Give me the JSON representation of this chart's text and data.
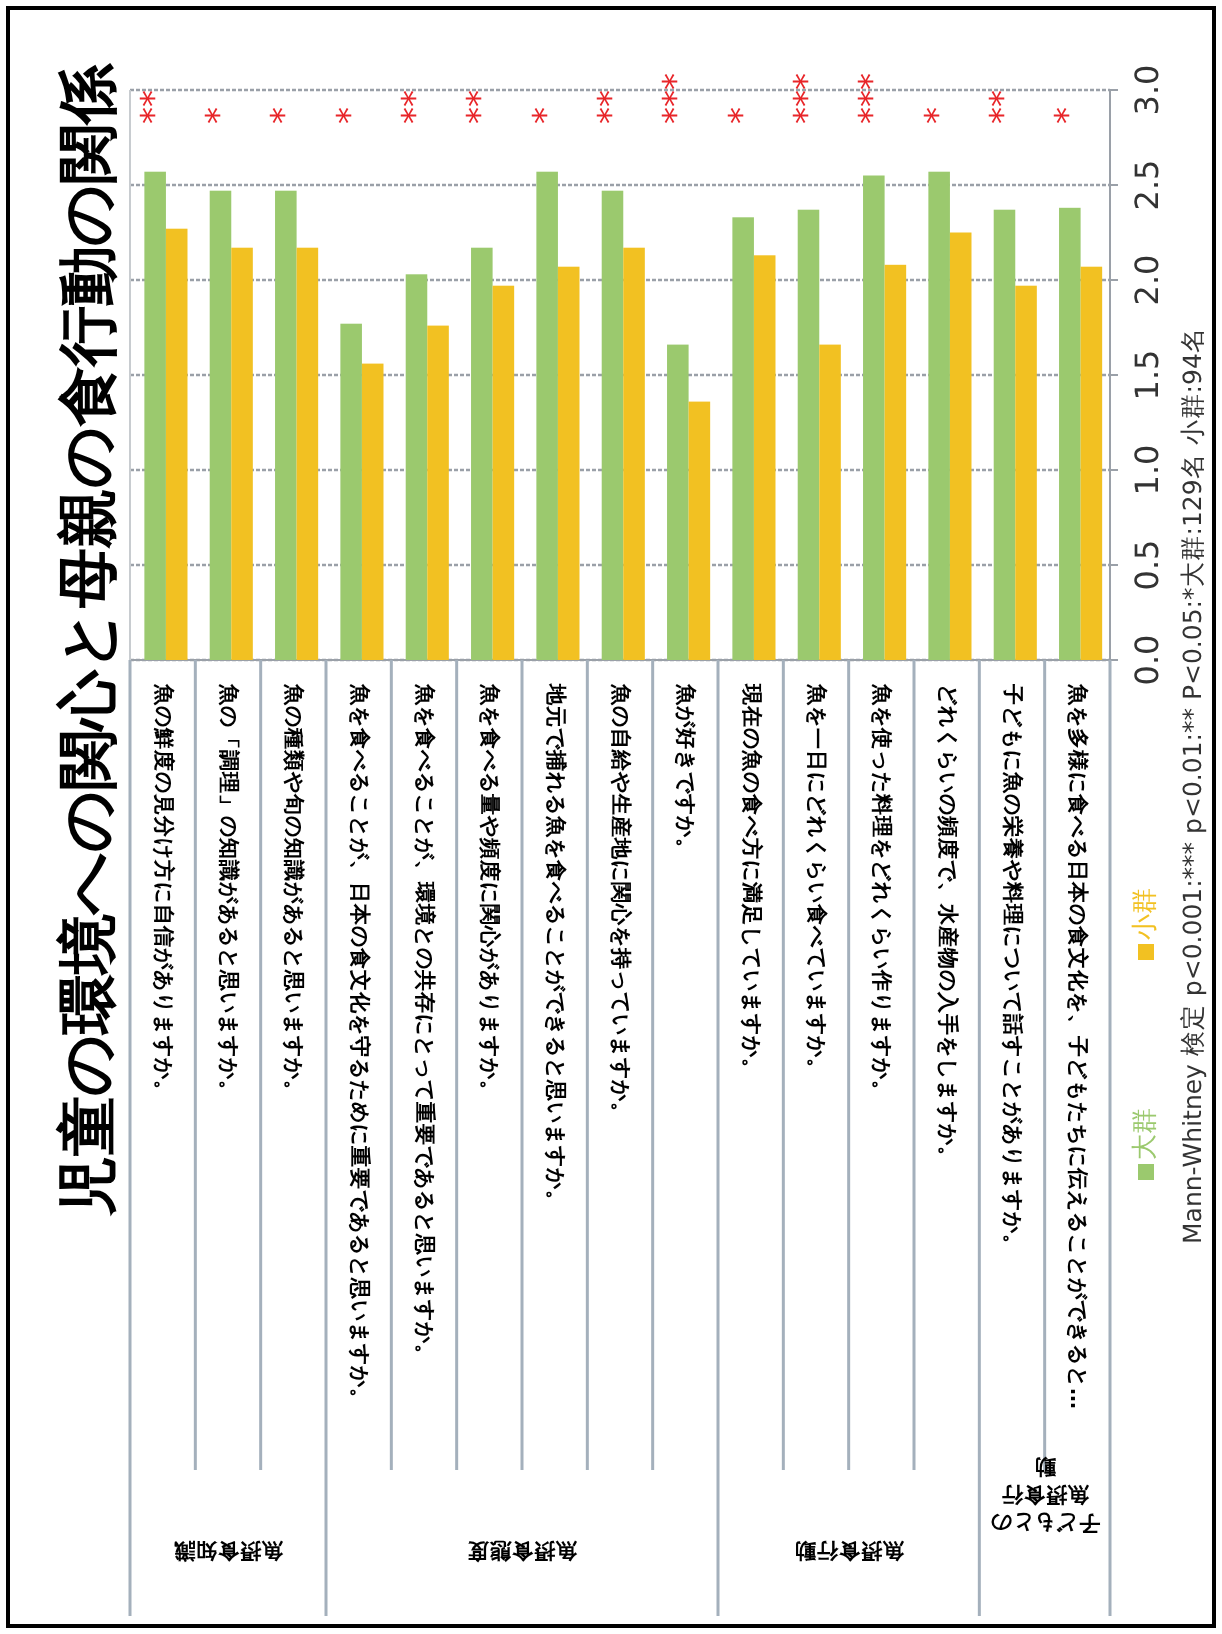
{
  "chart_data": {
    "type": "bar",
    "title": "児童の環境への関心と母親の食行動の関係",
    "categories": [
      "魚の鮮度の見分け方に自信がありますか。",
      "魚の「調理」の知識があると思いますか。",
      "魚の種類や旬の知識があると思いますか。",
      "魚を食べることが、日本の食文化を守るために重要であると思いますか。",
      "魚を食べることが、環境との共存にとって重要であると思いますか。",
      "魚を食べる量や頻度に関心がありますか。",
      "地元で捕れる魚を食べることができると思いますか。",
      "魚の自給や生産地に関心を持っていますか。",
      "魚が好きですか。",
      "現在の魚の食べ方に満足していますか。",
      "魚を一日にどれくらい食べていますか。",
      "魚を使った料理をどれくらい作りますか。",
      "どれくらいの頻度で、水産物の入手をしますか。",
      "子どもに魚の栄養や料理について話すことがありますか。",
      "魚を多様に食べる日本の食文化を、子どもたちに伝えることができると…"
    ],
    "series": [
      {
        "name": "大群",
        "color": "#9bc96e",
        "values": [
          2.57,
          2.47,
          2.47,
          1.77,
          2.03,
          2.17,
          2.57,
          2.47,
          1.66,
          2.33,
          2.37,
          2.55,
          2.57,
          2.37,
          2.38
        ]
      },
      {
        "name": "小群",
        "color": "#f2c122",
        "values": [
          2.27,
          2.17,
          2.17,
          1.56,
          1.76,
          1.97,
          2.07,
          2.17,
          1.36,
          2.13,
          1.66,
          2.08,
          2.25,
          1.97,
          2.07
        ]
      }
    ],
    "ylim": [
      0,
      3
    ],
    "yticks": [
      {
        "value": 0,
        "label": "0.0"
      },
      {
        "value": 0.5,
        "label": "0.5"
      },
      {
        "value": 1,
        "label": "1.0"
      },
      {
        "value": 1.5,
        "label": "1.5"
      },
      {
        "value": 2,
        "label": "2.0"
      },
      {
        "value": 2.5,
        "label": "2.5"
      },
      {
        "value": 3,
        "label": "3.0"
      }
    ],
    "grid": "y",
    "legend": "bottom",
    "annotations": [
      "**",
      "*",
      "*",
      "*",
      "**",
      "**",
      "*",
      "**",
      "***",
      "*",
      "***",
      "***",
      "*",
      "**",
      "*",
      "魚摂食知識",
      "魚摂食態度",
      "魚摂食行動",
      "子どもとの魚摂食行動",
      "Mann-Whitney 検定 p<0.001:*** p<0.01:** P<0.05:*大群:129名 小群:94名"
    ]
  }
}
